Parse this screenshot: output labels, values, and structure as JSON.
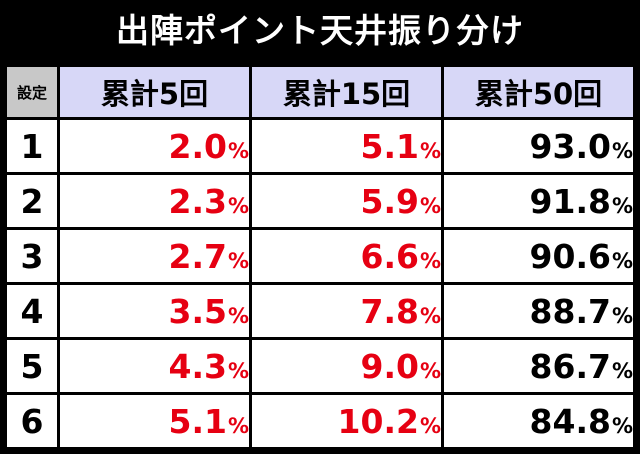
{
  "title": "出陣ポイント天井振り分け",
  "table": {
    "corner_label": "設定",
    "columns": [
      "累計5回",
      "累計15回",
      "累計50回"
    ],
    "percent_sign": "%",
    "rows": [
      {
        "setting": "1",
        "values": [
          "2.0",
          "5.1",
          "93.0"
        ]
      },
      {
        "setting": "2",
        "values": [
          "2.3",
          "5.9",
          "91.8"
        ]
      },
      {
        "setting": "3",
        "values": [
          "2.7",
          "6.6",
          "90.6"
        ]
      },
      {
        "setting": "4",
        "values": [
          "3.5",
          "7.8",
          "88.7"
        ]
      },
      {
        "setting": "5",
        "values": [
          "4.3",
          "9.0",
          "86.7"
        ]
      },
      {
        "setting": "6",
        "values": [
          "5.1",
          "10.2",
          "84.8"
        ]
      }
    ]
  },
  "colors": {
    "background": "#000000",
    "title_text": "#ffffff",
    "corner_bg": "#c8c8c8",
    "header_bg": "#d7d7f7",
    "cell_bg": "#ffffff",
    "highlight_value": "#e60012",
    "normal_value": "#000000"
  },
  "column_colors": [
    "#e60012",
    "#e60012",
    "#000000"
  ]
}
